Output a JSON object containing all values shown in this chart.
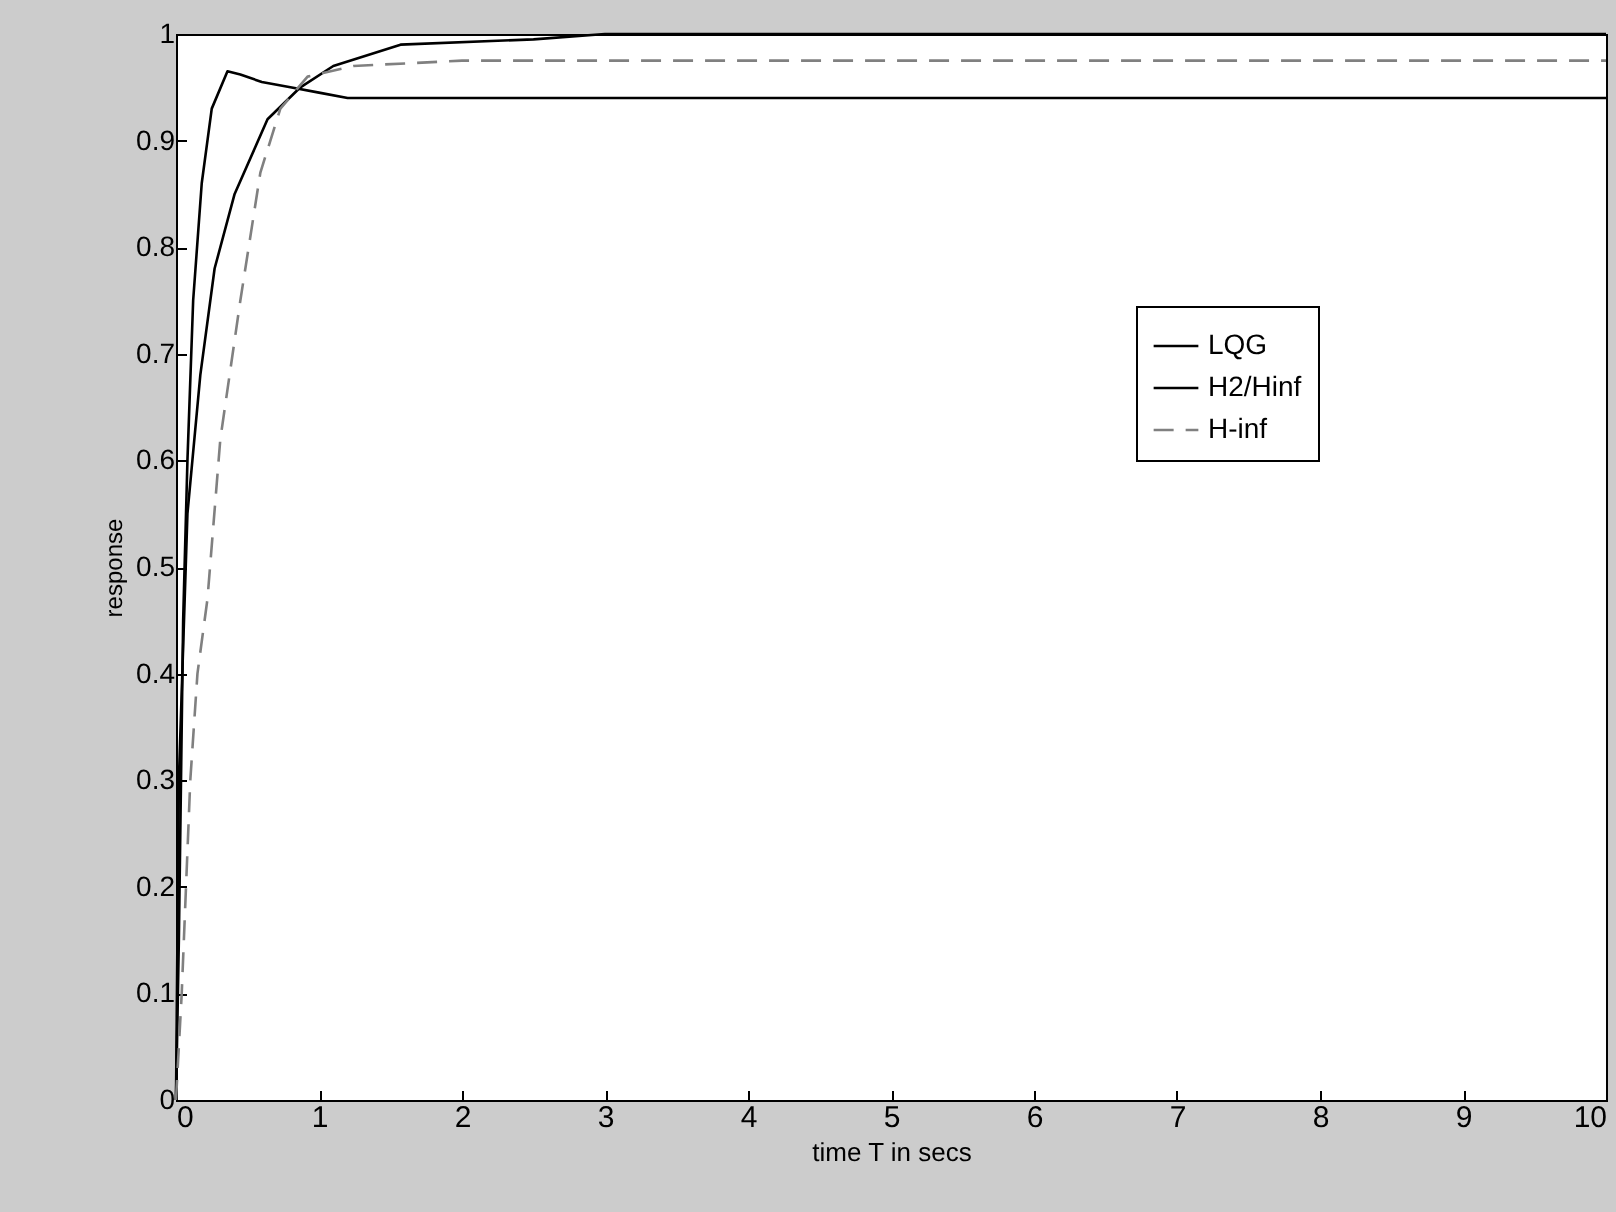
{
  "chart_data": {
    "type": "line",
    "xlabel": "time T in secs",
    "ylabel": "response",
    "xlim": [
      0,
      10
    ],
    "ylim": [
      0,
      1
    ],
    "xticks": [
      0,
      1,
      2,
      3,
      4,
      5,
      6,
      7,
      8,
      9,
      10
    ],
    "yticks": [
      0,
      0.1,
      0.2,
      0.3,
      0.4,
      0.5,
      0.6,
      0.7,
      0.8,
      0.9,
      1
    ],
    "grid": false,
    "legend": "top right",
    "marker": "none",
    "series": [
      {
        "name": "LQG",
        "color": "#000000",
        "line_style": "solid",
        "x": [
          0,
          0.02,
          0.05,
          0.08,
          0.12,
          0.18,
          0.25,
          0.36,
          0.45,
          0.6,
          0.8,
          1.0,
          1.2,
          10
        ],
        "values": [
          0,
          0.15,
          0.45,
          0.6,
          0.75,
          0.86,
          0.93,
          0.965,
          0.962,
          0.955,
          0.95,
          0.945,
          0.94,
          0.94
        ]
      },
      {
        "name": "H2/Hinf",
        "color": "#000000",
        "line_style": "solid",
        "x": [
          0,
          0.02,
          0.08,
          0.17,
          0.27,
          0.41,
          0.64,
          0.87,
          1.1,
          1.57,
          2.5,
          3,
          10
        ],
        "values": [
          0,
          0.3,
          0.55,
          0.68,
          0.78,
          0.85,
          0.92,
          0.95,
          0.97,
          0.99,
          0.995,
          1,
          1
        ]
      },
      {
        "name": "H-inf",
        "color": "#808080",
        "line_style": "dashed",
        "x": [
          0,
          0.04,
          0.1,
          0.15,
          0.22,
          0.31,
          0.45,
          0.59,
          0.73,
          0.92,
          1.24,
          2,
          10
        ],
        "values": [
          0,
          0.1,
          0.3,
          0.4,
          0.47,
          0.62,
          0.75,
          0.87,
          0.93,
          0.96,
          0.97,
          0.975,
          0.975
        ]
      }
    ]
  }
}
